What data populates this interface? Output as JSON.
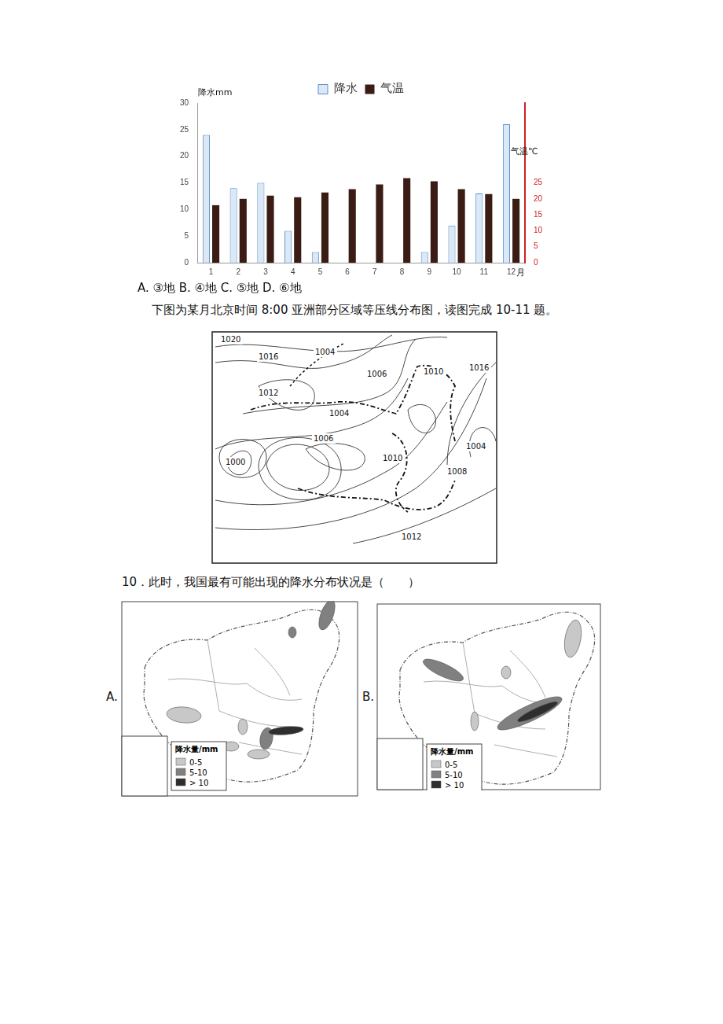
{
  "chart_data": {
    "type": "bar",
    "categories": [
      "1",
      "2",
      "3",
      "4",
      "5",
      "6",
      "7",
      "8",
      "9",
      "10",
      "11",
      "12"
    ],
    "series": [
      {
        "name": "降水",
        "color": "#dbe8f5",
        "axis": "y",
        "values": [
          24,
          14,
          15,
          6,
          2,
          0,
          0,
          0,
          2,
          7,
          13,
          26
        ]
      },
      {
        "name": "气温",
        "color": "#3a1c14",
        "axis": "y2",
        "values": [
          18,
          20,
          21,
          20.5,
          22,
          23,
          24.5,
          26.5,
          25.5,
          23,
          21.5,
          20
        ]
      }
    ],
    "y_label": "降水mm",
    "y2_label": "气温℃",
    "x_label": "月",
    "ylim": [
      0,
      30
    ],
    "yticks": [
      0,
      5,
      10,
      15,
      20,
      25,
      30
    ],
    "y2lim": [
      0,
      50
    ],
    "y2ticks": [
      0,
      5,
      10,
      15,
      20,
      25
    ],
    "grid": false,
    "legend": "top"
  },
  "document": {
    "options_line": "A. ③地 B. ④地 C. ⑤地 D. ⑥地",
    "intro": "下图为某月北京时间 8:00 亚洲部分区域等压线分布图，读图完成 10-11 题。",
    "pressure_map": {
      "isobar_labels": [
        "1020",
        "1016",
        "1004",
        "1012",
        "1004",
        "1006",
        "1010",
        "1016",
        "1000",
        "1006",
        "1010",
        "1004",
        "1008",
        "1012"
      ]
    },
    "question": "10．此时，我国最有可能出现的降水分布状况是（　　）",
    "choices": [
      {
        "letter": "A.",
        "legend_title": "降水量/mm",
        "legend_items": [
          "0-5",
          "5-10",
          "> 10"
        ]
      },
      {
        "letter": "B.",
        "legend_title": "降水量/mm",
        "legend_items": [
          "0-5",
          "5-10",
          "> 10"
        ]
      }
    ]
  }
}
